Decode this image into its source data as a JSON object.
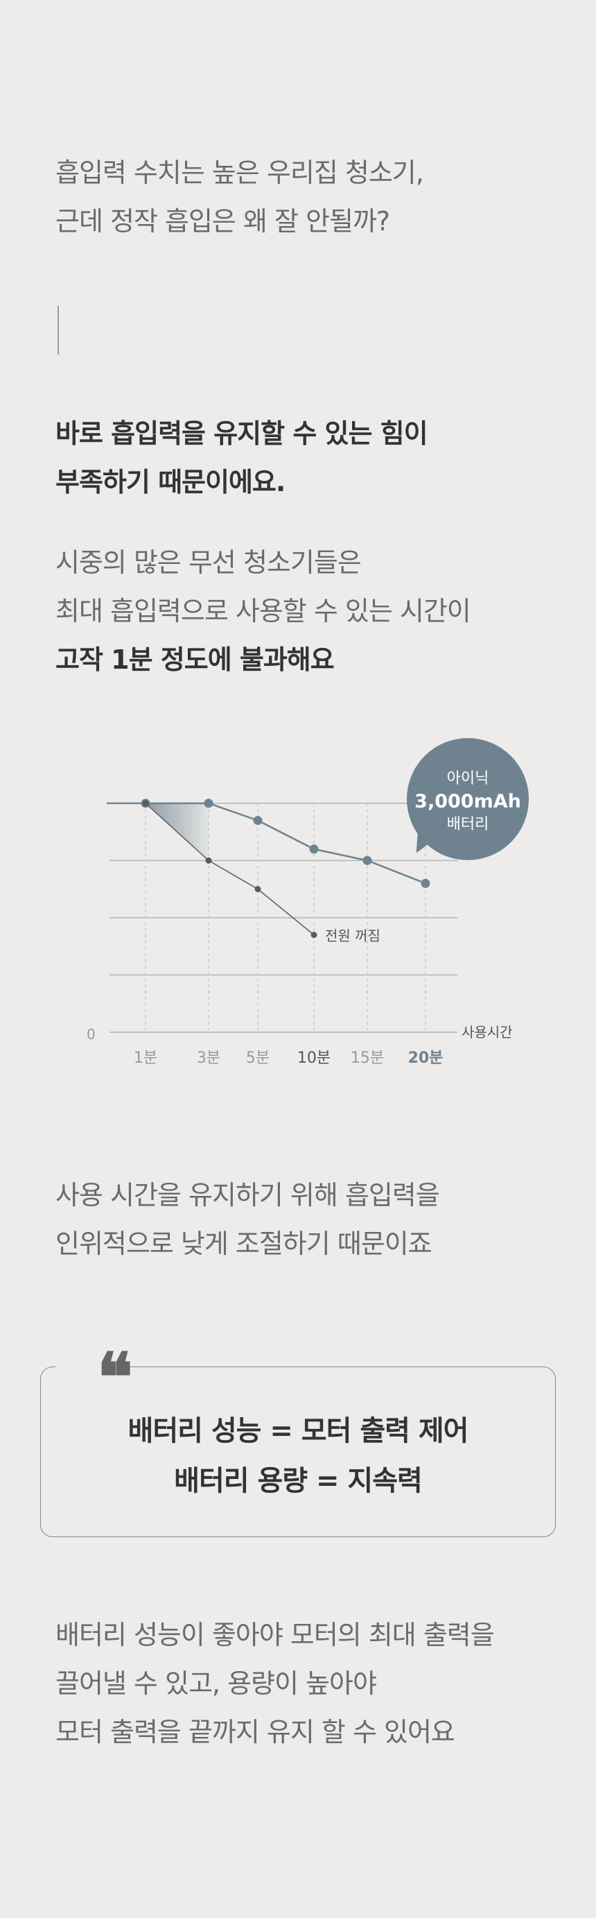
{
  "intro": {
    "line1": "흡입력 수치는 높은 우리집 청소기,",
    "line2": "근데 정작 흡입은 왜 잘 안될까?"
  },
  "reason": {
    "line1": "바로 흡입력을 유지할 수 있는 힘이",
    "line2": "부족하기 때문이에요."
  },
  "market": {
    "line1": "시중의 많은 무선 청소기들은",
    "line2": "최대 흡입력으로 사용할 수 있는 시간이",
    "line3": "고작 1분 정도에 불과해요"
  },
  "chart_data": {
    "type": "line",
    "categories": [
      "1분",
      "3분",
      "5분",
      "10분",
      "15분",
      "20분"
    ],
    "highlighted_category": "20분",
    "xlabel": "사용시간",
    "ylabel": "",
    "y_zero_label": "0",
    "ylim": [
      0,
      4
    ],
    "grid": true,
    "series": [
      {
        "name": "아이닉 3,000mAh 배터리",
        "values": [
          4,
          4,
          3.7,
          3.2,
          3.0,
          2.6
        ],
        "color": "#6f8290"
      },
      {
        "name": "",
        "values": [
          4,
          3.0,
          2.5,
          1.7,
          null,
          null
        ],
        "color": "#5a5a5a"
      }
    ],
    "annotations": [
      {
        "text": "전원 꺼짐",
        "at_category": "10분"
      }
    ],
    "callout": {
      "line1": "아이닉",
      "line2": "3,000mAh",
      "line3": "배터리"
    }
  },
  "usage": {
    "line1": "사용 시간을 유지하기 위해 흡입력을",
    "line2": "인위적으로 낮게 조절하기 때문이죠"
  },
  "quote": {
    "mark": "❝",
    "line1": "배터리 성능 = 모터 출력 제어",
    "line2": "배터리 용량 = 지속력"
  },
  "closing": {
    "line1": "배터리 성능이 좋아야 모터의 최대 출력을",
    "line2": "끌어낼 수 있고, 용량이 높아야",
    "line3": "모터 출력을 끝까지 유지 할 수 있어요"
  },
  "colors": {
    "background": "#edecea",
    "accent": "#6f8290",
    "competitor": "#5a5a5a"
  }
}
